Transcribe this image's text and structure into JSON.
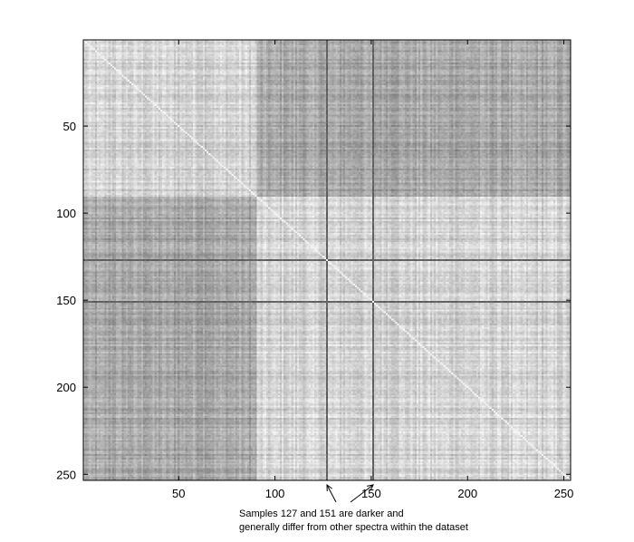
{
  "chart_data": {
    "type": "heatmap",
    "title": "",
    "xlabel": "",
    "ylabel": "",
    "n": 253,
    "xlim": [
      0.5,
      253.5
    ],
    "ylim": [
      0.5,
      253.5
    ],
    "y_direction": "top-to-bottom",
    "grid": false,
    "colormap": "gray",
    "x_ticks": [
      50,
      100,
      150,
      200,
      250
    ],
    "y_ticks": [
      50,
      100,
      150,
      200,
      250
    ],
    "x_tick_labels": [
      "50",
      "100",
      "150",
      "200",
      "250"
    ],
    "y_tick_labels": [
      "50",
      "100",
      "150",
      "200",
      "250"
    ],
    "diagonal_value": 1.0,
    "background_similarity": 0.75,
    "group_boundary_sample": 91,
    "within_group_similarity": 0.82,
    "between_group_similarity": 0.6,
    "dark_samples": [
      127,
      151
    ],
    "dark_sample_similarity": 0.25,
    "colors": {
      "low": "#333333",
      "high": "#f5f5f5",
      "diagonal": "#ffffff"
    }
  },
  "annotation": {
    "line1": "Samples 127 and 151 are darker and",
    "line2": "generally differ from other spectra within the dataset",
    "arrow_targets": [
      127,
      151
    ]
  }
}
